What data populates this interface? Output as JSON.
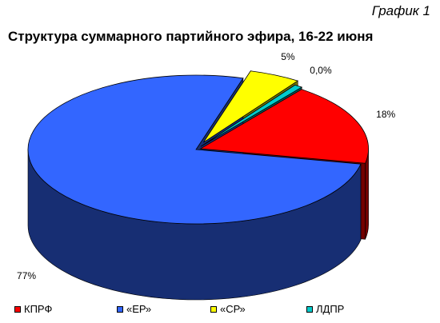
{
  "caption": "График 1",
  "chart_data": {
    "type": "pie",
    "title": "Структура суммарного партийного эфира, 16-22 июня",
    "legend_position": "bottom",
    "categories": [
      "КПРФ",
      "«ЕР»",
      "«СР»",
      "ЛДПР"
    ],
    "values": [
      18,
      77,
      5,
      0.0
    ],
    "labels": [
      "18%",
      "77%",
      "5%",
      "0,0%"
    ],
    "colors": [
      "#ff0000",
      "#3366ff",
      "#ffff00",
      "#00cccc"
    ]
  }
}
